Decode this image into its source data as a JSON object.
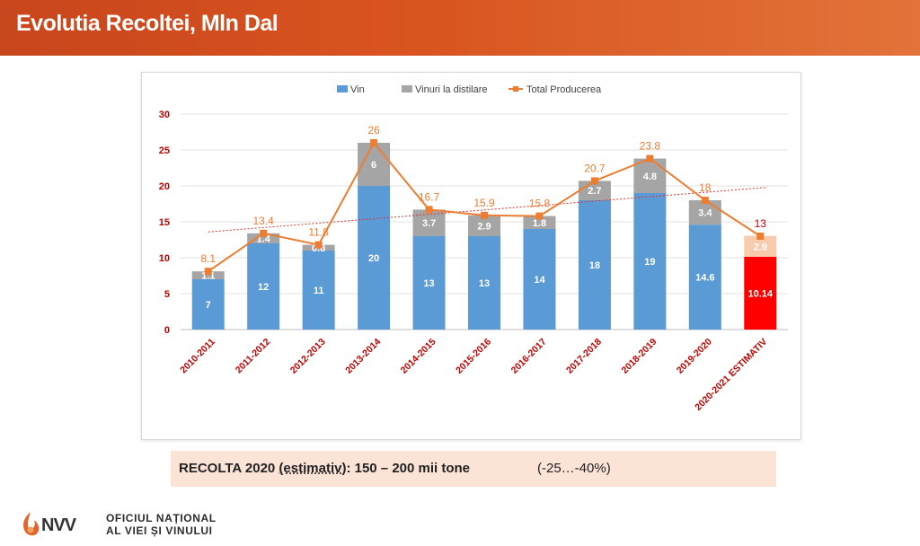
{
  "header": {
    "title": "Evolutia Recoltei, Mln Dal"
  },
  "chart_data": {
    "type": "bar",
    "stacked": true,
    "categories": [
      "2010-2011",
      "2011-2012",
      "2012-2013",
      "2013-2014",
      "2014-2015",
      "2015-2016",
      "2016-2017",
      "2017-2018",
      "2018-2019",
      "2019-2020",
      "2020-2021 ESTIMATIV"
    ],
    "series": [
      {
        "name": "Vin",
        "kind": "bar",
        "color": "#5b9bd5",
        "values": [
          7,
          12,
          11,
          20,
          13,
          13,
          14,
          18,
          19,
          14.6,
          10.14
        ],
        "labels": [
          "7",
          "12",
          "11",
          "20",
          "13",
          "13",
          "14",
          "18",
          "19",
          "14.6",
          "10.14"
        ]
      },
      {
        "name": "Vinuri la distilare",
        "kind": "bar",
        "color": "#a5a5a5",
        "values": [
          1.1,
          1.4,
          0.8,
          6,
          3.7,
          2.9,
          1.8,
          2.7,
          4.8,
          3.4,
          2.9
        ],
        "labels": [
          "1.1",
          "1.4",
          "0.8",
          "6",
          "3.7",
          "2.9",
          "1.8",
          "2.7",
          "4.8",
          "3.4",
          "2.9"
        ]
      },
      {
        "name": "Total Producerea",
        "kind": "line",
        "color": "#ed7d31",
        "values": [
          8.1,
          13.4,
          11.8,
          26,
          16.7,
          15.9,
          15.8,
          20.7,
          23.8,
          18,
          13
        ],
        "labels": [
          "8.1",
          "13.4",
          "11.8",
          "26",
          "16.7",
          "15.9",
          "15.8",
          "20.7",
          "23.8",
          "18",
          "13"
        ]
      }
    ],
    "highlight_last": {
      "vin_color": "#ff0000",
      "distilare_color": "#f8cbad",
      "total_label_color": "#c00000"
    },
    "trendline": {
      "series": "Total Producerea",
      "style": "dotted",
      "color": "#e03030"
    },
    "y_ticks": [
      "0",
      "5",
      "10",
      "15",
      "20",
      "25",
      "30"
    ],
    "ylim": [
      0,
      30
    ],
    "legend": "top-center",
    "grid": true,
    "tick_label_color": "#c00000"
  },
  "note": {
    "prefix": "RECOLTA  2020 ",
    "estimativ": "(estimativ)",
    "suffix": ": 150 – 200 mii tone",
    "change": "(-25…-40%)"
  },
  "footer": {
    "logo_letters": "NVV",
    "org_line1": "OFICIUL NAȚIONAL",
    "org_line2": "AL VIEI ȘI VINULUI"
  }
}
